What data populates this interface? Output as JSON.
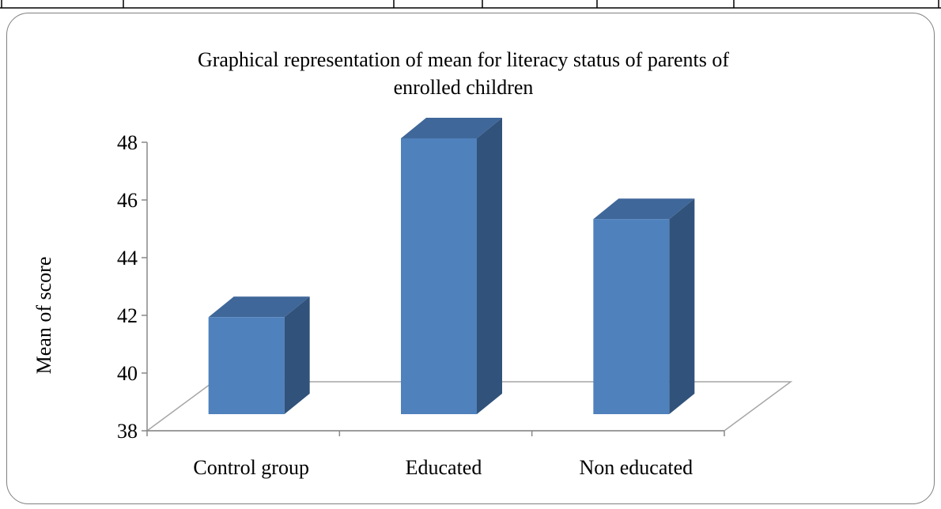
{
  "colors": {
    "bar_front": "#4F81BD",
    "bar_side": "#31527A",
    "bar_top": "#3F6799",
    "axis": "#898989",
    "floor": "#a6a6a6"
  },
  "chart_data": {
    "type": "bar",
    "style": "3d-column",
    "title_lines": [
      "Graphical representation of mean for literacy status of parents of",
      "enrolled children"
    ],
    "xlabel": "",
    "ylabel": "Mean of score",
    "categories": [
      "Control group",
      "Educated",
      "Non educated"
    ],
    "values": [
      41.8,
      48.0,
      45.2
    ],
    "ylim": [
      38,
      48
    ],
    "yticks": [
      38,
      40,
      42,
      44,
      46,
      48
    ],
    "grid": false,
    "legend": "none"
  }
}
